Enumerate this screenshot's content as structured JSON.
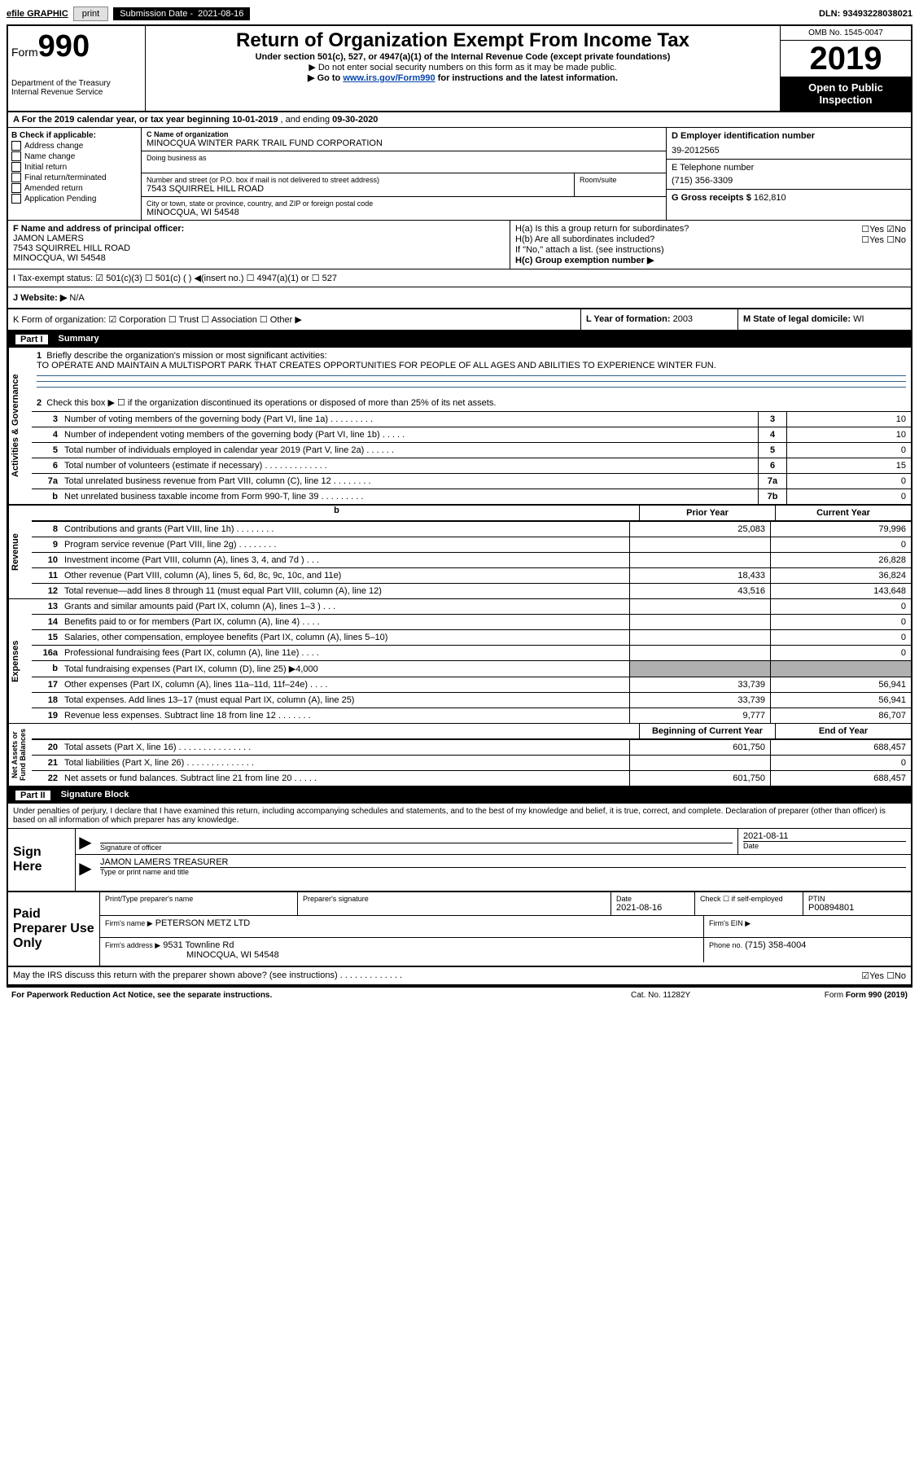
{
  "topbar": {
    "efile": "efile GRAPHIC",
    "print": "print",
    "sub_date_label": "Submission Date -",
    "sub_date": "2021-08-16",
    "dln_label": "DLN:",
    "dln": "93493228038021"
  },
  "header": {
    "form_prefix": "Form",
    "form_number": "990",
    "dept": "Department of the Treasury\nInternal Revenue Service",
    "title": "Return of Organization Exempt From Income Tax",
    "subtitle": "Under section 501(c), 527, or 4947(a)(1) of the Internal Revenue Code (except private foundations)",
    "note1": "▶ Do not enter social security numbers on this form as it may be made public.",
    "note2_pre": "▶ Go to ",
    "note2_link": "www.irs.gov/Form990",
    "note2_post": " for instructions and the latest information.",
    "omb": "OMB No. 1545-0047",
    "year": "2019",
    "open_pub": "Open to Public\nInspection"
  },
  "row_a": {
    "text_pre": "A For the 2019 calendar year, or tax year beginning ",
    "begin": "10-01-2019",
    "mid": " , and ending ",
    "end": "09-30-2020"
  },
  "col_b": {
    "header": "B Check if applicable:",
    "items": [
      "Address change",
      "Name change",
      "Initial return",
      "Final return/terminated",
      "Amended return",
      "Application Pending"
    ]
  },
  "col_c": {
    "name_label": "C Name of organization",
    "name": "MINOCQUA WINTER PARK TRAIL FUND CORPORATION",
    "dba_label": "Doing business as",
    "addr_label": "Number and street (or P.O. box if mail is not delivered to street address)",
    "addr": "7543 SQUIRREL HILL ROAD",
    "room_label": "Room/suite",
    "city_label": "City or town, state or province, country, and ZIP or foreign postal code",
    "city": "MINOCQUA, WI  54548"
  },
  "col_d": {
    "d_label": "D Employer identification number",
    "d_val": "39-2012565",
    "e_label": "E Telephone number",
    "e_val": "(715) 356-3309",
    "g_label": "G Gross receipts $",
    "g_val": "162,810"
  },
  "row_f": {
    "f_label": "F Name and address of principal officer:",
    "f_name": "JAMON LAMERS",
    "f_addr1": "7543 SQUIRREL HILL ROAD",
    "f_addr2": "MINOCQUA, WI  54548",
    "h_a": "H(a)  Is this a group return for subordinates?",
    "h_a_ans": "☐Yes ☑No",
    "h_b": "H(b)  Are all subordinates included?",
    "h_b_ans": "☐Yes ☐No",
    "h_note": "If \"No,\" attach a list. (see instructions)",
    "h_c": "H(c)  Group exemption number ▶"
  },
  "row_i": {
    "label": "I Tax-exempt status:",
    "opts": "☑ 501(c)(3)   ☐ 501(c) (  ) ◀(insert no.)   ☐ 4947(a)(1) or   ☐ 527"
  },
  "row_j": {
    "label": "J Website: ▶",
    "val": "N/A"
  },
  "row_klm": {
    "k": "K Form of organization:  ☑ Corporation  ☐ Trust  ☐ Association  ☐ Other ▶",
    "l_label": "L Year of formation:",
    "l_val": "2003",
    "m_label": "M State of legal domicile:",
    "m_val": "WI"
  },
  "part1": {
    "label": "Part I",
    "title": "Summary"
  },
  "gov": {
    "side": "Activities & Governance",
    "line1_num": "1",
    "line1": "Briefly describe the organization's mission or most significant activities:",
    "line1_text": "TO OPERATE AND MAINTAIN A MULTISPORT PARK THAT CREATES OPPORTUNITIES FOR PEOPLE OF ALL AGES AND ABILITIES TO EXPERIENCE WINTER FUN.",
    "line2_num": "2",
    "line2": "Check this box ▶ ☐ if the organization discontinued its operations or disposed of more than 25% of its net assets.",
    "rows": [
      {
        "n": "3",
        "d": "Number of voting members of the governing body (Part VI, line 1a)  .  .  .  .  .  .  .  .  .",
        "b": "3",
        "v": "10"
      },
      {
        "n": "4",
        "d": "Number of independent voting members of the governing body (Part VI, line 1b)  .  .  .  .  .",
        "b": "4",
        "v": "10"
      },
      {
        "n": "5",
        "d": "Total number of individuals employed in calendar year 2019 (Part V, line 2a)  .  .  .  .  .  .",
        "b": "5",
        "v": "0"
      },
      {
        "n": "6",
        "d": "Total number of volunteers (estimate if necessary)  .  .  .  .  .  .  .  .  .  .  .  .  .",
        "b": "6",
        "v": "15"
      },
      {
        "n": "7a",
        "d": "Total unrelated business revenue from Part VIII, column (C), line 12  .  .  .  .  .  .  .  .",
        "b": "7a",
        "v": "0"
      },
      {
        "n": "b",
        "d": "Net unrelated business taxable income from Form 990-T, line 39  .  .  .  .  .  .  .  .  .",
        "b": "7b",
        "v": "0"
      }
    ]
  },
  "col_hdr": {
    "prior": "Prior Year",
    "curr": "Current Year"
  },
  "revenue": {
    "side": "Revenue",
    "rows": [
      {
        "n": "8",
        "d": "Contributions and grants (Part VIII, line 1h)  .  .  .  .  .  .  .  .",
        "p": "25,083",
        "c": "79,996"
      },
      {
        "n": "9",
        "d": "Program service revenue (Part VIII, line 2g)  .  .  .  .  .  .  .  .",
        "p": "",
        "c": "0"
      },
      {
        "n": "10",
        "d": "Investment income (Part VIII, column (A), lines 3, 4, and 7d )  .  .  .",
        "p": "",
        "c": "26,828"
      },
      {
        "n": "11",
        "d": "Other revenue (Part VIII, column (A), lines 5, 6d, 8c, 9c, 10c, and 11e)",
        "p": "18,433",
        "c": "36,824"
      },
      {
        "n": "12",
        "d": "Total revenue—add lines 8 through 11 (must equal Part VIII, column (A), line 12)",
        "p": "43,516",
        "c": "143,648"
      }
    ]
  },
  "expenses": {
    "side": "Expenses",
    "rows": [
      {
        "n": "13",
        "d": "Grants and similar amounts paid (Part IX, column (A), lines 1–3 )  .  .  .",
        "p": "",
        "c": "0"
      },
      {
        "n": "14",
        "d": "Benefits paid to or for members (Part IX, column (A), line 4)  .  .  .  .",
        "p": "",
        "c": "0"
      },
      {
        "n": "15",
        "d": "Salaries, other compensation, employee benefits (Part IX, column (A), lines 5–10)",
        "p": "",
        "c": "0"
      },
      {
        "n": "16a",
        "d": "Professional fundraising fees (Part IX, column (A), line 11e)  .  .  .  .",
        "p": "",
        "c": "0"
      },
      {
        "n": "b",
        "d": "Total fundraising expenses (Part IX, column (D), line 25) ▶4,000",
        "p": "shade",
        "c": "shade"
      },
      {
        "n": "17",
        "d": "Other expenses (Part IX, column (A), lines 11a–11d, 11f–24e)  .  .  .  .",
        "p": "33,739",
        "c": "56,941"
      },
      {
        "n": "18",
        "d": "Total expenses. Add lines 13–17 (must equal Part IX, column (A), line 25)",
        "p": "33,739",
        "c": "56,941"
      },
      {
        "n": "19",
        "d": "Revenue less expenses. Subtract line 18 from line 12  .  .  .  .  .  .  .",
        "p": "9,777",
        "c": "86,707"
      }
    ]
  },
  "col_hdr2": {
    "prior": "Beginning of Current Year",
    "curr": "End of Year"
  },
  "netassets": {
    "side": "Net Assets or\nFund Balances",
    "rows": [
      {
        "n": "20",
        "d": "Total assets (Part X, line 16)  .  .  .  .  .  .  .  .  .  .  .  .  .  .  .",
        "p": "601,750",
        "c": "688,457"
      },
      {
        "n": "21",
        "d": "Total liabilities (Part X, line 26)  .  .  .  .  .  .  .  .  .  .  .  .  .  .",
        "p": "",
        "c": "0"
      },
      {
        "n": "22",
        "d": "Net assets or fund balances. Subtract line 21 from line 20  .  .  .  .  .",
        "p": "601,750",
        "c": "688,457"
      }
    ]
  },
  "part2": {
    "label": "Part II",
    "title": "Signature Block",
    "decl": "Under penalties of perjury, I declare that I have examined this return, including accompanying schedules and statements, and to the best of my knowledge and belief, it is true, correct, and complete. Declaration of preparer (other than officer) is based on all information of which preparer has any knowledge."
  },
  "sign": {
    "here": "Sign Here",
    "sig_officer": "Signature of officer",
    "date_label": "Date",
    "date": "2021-08-11",
    "name": "JAMON LAMERS TREASURER",
    "name_label": "Type or print name and title"
  },
  "paid": {
    "here": "Paid Preparer Use Only",
    "prep_name_label": "Print/Type preparer's name",
    "prep_sig_label": "Preparer's signature",
    "date_label": "Date",
    "date": "2021-08-16",
    "check_label": "Check ☐ if self-employed",
    "ptin_label": "PTIN",
    "ptin": "P00894801",
    "firm_name_label": "Firm's name    ▶",
    "firm_name": "PETERSON METZ LTD",
    "firm_ein_label": "Firm's EIN ▶",
    "firm_addr_label": "Firm's address ▶",
    "firm_addr1": "9531 Townline Rd",
    "firm_addr2": "MINOCQUA, WI  54548",
    "phone_label": "Phone no.",
    "phone": "(715) 358-4004"
  },
  "discuss": {
    "q": "May the IRS discuss this return with the preparer shown above? (see instructions)  .  .  .  .  .  .  .  .  .  .  .  .  .",
    "ans": "☑Yes  ☐No"
  },
  "footer": {
    "l": "For Paperwork Reduction Act Notice, see the separate instructions.",
    "c": "Cat. No. 11282Y",
    "r": "Form 990 (2019)"
  }
}
